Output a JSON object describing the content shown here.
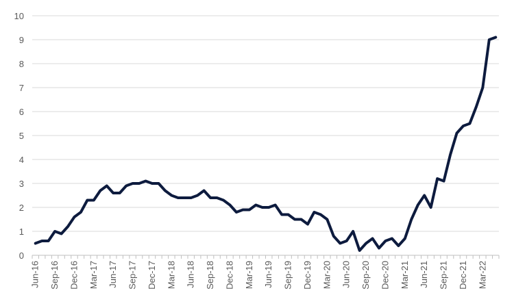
{
  "chart_data": {
    "type": "line",
    "title": "",
    "xlabel": "",
    "ylabel": "",
    "ylim": [
      0,
      10
    ],
    "yticks": [
      "0",
      "1",
      "2",
      "3",
      "4",
      "5",
      "6",
      "7",
      "8",
      "9",
      "10"
    ],
    "grid": "horizontal",
    "legend": "none",
    "x_tick_labels": [
      "Jun-16",
      "Sep-16",
      "Dec-16",
      "Mar-17",
      "Jun-17",
      "Sep-17",
      "Dec-17",
      "Mar-18",
      "Jun-18",
      "Sep-18",
      "Dec-18",
      "Mar-19",
      "Jun-19",
      "Sep-19",
      "Dec-19",
      "Mar-20",
      "Jun-20",
      "Sep-20",
      "Dec-20",
      "Mar-21",
      "Jun-21",
      "Sep-21",
      "Dec-21",
      "Mar-22"
    ],
    "x": [
      "Jun-16",
      "Jul-16",
      "Aug-16",
      "Sep-16",
      "Oct-16",
      "Nov-16",
      "Dec-16",
      "Jan-17",
      "Feb-17",
      "Mar-17",
      "Apr-17",
      "May-17",
      "Jun-17",
      "Jul-17",
      "Aug-17",
      "Sep-17",
      "Oct-17",
      "Nov-17",
      "Dec-17",
      "Jan-18",
      "Feb-18",
      "Mar-18",
      "Apr-18",
      "May-18",
      "Jun-18",
      "Jul-18",
      "Aug-18",
      "Sep-18",
      "Oct-18",
      "Nov-18",
      "Dec-18",
      "Jan-19",
      "Feb-19",
      "Mar-19",
      "Apr-19",
      "May-19",
      "Jun-19",
      "Jul-19",
      "Aug-19",
      "Sep-19",
      "Oct-19",
      "Nov-19",
      "Dec-19",
      "Jan-20",
      "Feb-20",
      "Mar-20",
      "Apr-20",
      "May-20",
      "Jun-20",
      "Jul-20",
      "Aug-20",
      "Sep-20",
      "Oct-20",
      "Nov-20",
      "Dec-20",
      "Jan-21",
      "Feb-21",
      "Mar-21",
      "Apr-21",
      "May-21",
      "Jun-21",
      "Jul-21",
      "Aug-21",
      "Sep-21",
      "Oct-21",
      "Nov-21",
      "Dec-21",
      "Jan-22",
      "Feb-22",
      "Mar-22",
      "Apr-22",
      "May-22"
    ],
    "series": [
      {
        "color": "#0d1b3e",
        "values": [
          0.5,
          0.6,
          0.6,
          1.0,
          0.9,
          1.2,
          1.6,
          1.8,
          2.3,
          2.3,
          2.7,
          2.9,
          2.6,
          2.6,
          2.9,
          3.0,
          3.0,
          3.1,
          3.0,
          3.0,
          2.7,
          2.5,
          2.4,
          2.4,
          2.4,
          2.5,
          2.7,
          2.4,
          2.4,
          2.3,
          2.1,
          1.8,
          1.9,
          1.9,
          2.1,
          2.0,
          2.0,
          2.1,
          1.7,
          1.7,
          1.5,
          1.5,
          1.3,
          1.8,
          1.7,
          1.5,
          0.8,
          0.5,
          0.6,
          1.0,
          0.2,
          0.5,
          0.7,
          0.3,
          0.6,
          0.7,
          0.4,
          0.7,
          1.5,
          2.1,
          2.5,
          2.0,
          3.2,
          3.1,
          4.2,
          5.1,
          5.4,
          5.5,
          6.2,
          7.0,
          9.0,
          9.1
        ]
      }
    ]
  }
}
